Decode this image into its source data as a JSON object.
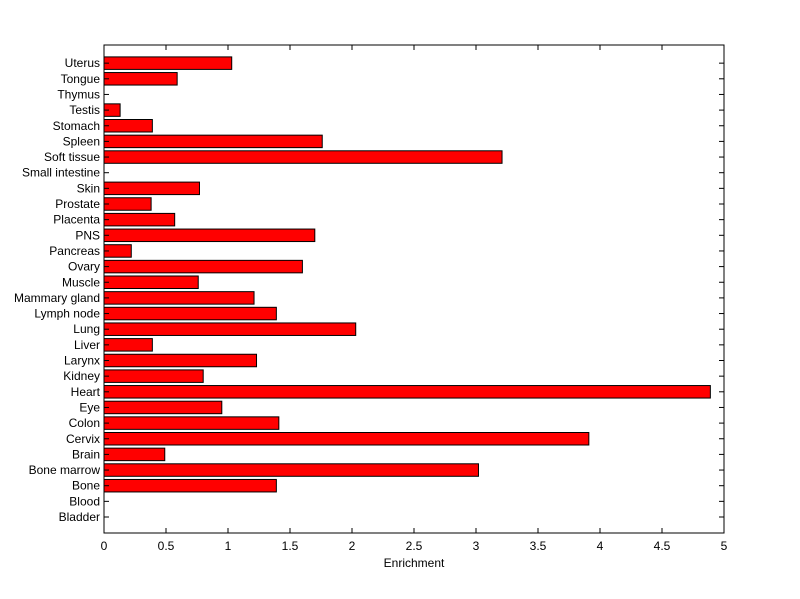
{
  "chart_data": {
    "type": "bar",
    "orientation": "horizontal",
    "title": "",
    "xlabel": "Enrichment",
    "ylabel": "",
    "xlim": [
      0,
      5
    ],
    "xticks": [
      0,
      0.5,
      1,
      1.5,
      2,
      2.5,
      3,
      3.5,
      4,
      4.5,
      5
    ],
    "xtick_labels": [
      "0",
      "0.5",
      "1",
      "1.5",
      "2",
      "2.5",
      "3",
      "3.5",
      "4",
      "4.5",
      "5"
    ],
    "grid": false,
    "legend": "none",
    "bar_color": "#ff0000",
    "categories": [
      "Bladder",
      "Blood",
      "Bone",
      "Bone marrow",
      "Brain",
      "Cervix",
      "Colon",
      "Eye",
      "Heart",
      "Kidney",
      "Larynx",
      "Liver",
      "Lung",
      "Lymph node",
      "Mammary gland",
      "Muscle",
      "Ovary",
      "Pancreas",
      "PNS",
      "Placenta",
      "Prostate",
      "Skin",
      "Small intestine",
      "Soft tissue",
      "Spleen",
      "Stomach",
      "Testis",
      "Thymus",
      "Tongue",
      "Uterus"
    ],
    "values": [
      0,
      0,
      1.39,
      3.02,
      0.49,
      3.91,
      1.41,
      0.95,
      4.89,
      0.8,
      1.23,
      0.39,
      2.03,
      1.39,
      1.21,
      0.76,
      1.6,
      0.22,
      1.7,
      0.57,
      0.38,
      0.77,
      0,
      3.21,
      1.76,
      0.39,
      0.13,
      0,
      0.59,
      1.03
    ]
  }
}
